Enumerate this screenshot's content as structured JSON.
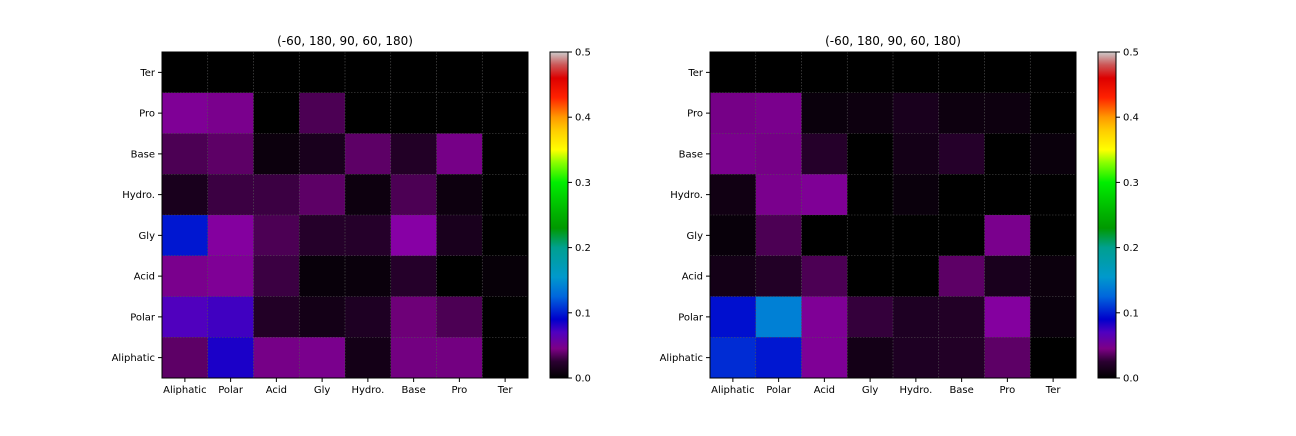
{
  "chart_data": [
    {
      "type": "heatmap",
      "title": "(-60, 180, 90, 60, 180)",
      "x_categories": [
        "Aliphatic",
        "Polar",
        "Acid",
        "Gly",
        "Hydro.",
        "Base",
        "Pro",
        "Ter"
      ],
      "y_categories": [
        "Ter",
        "Pro",
        "Base",
        "Hydro.",
        "Gly",
        "Acid",
        "Polar",
        "Aliphatic"
      ],
      "values": [
        [
          0.0,
          0.0,
          0.0,
          0.0,
          0.0,
          0.0,
          0.0,
          0.0
        ],
        [
          0.055,
          0.052,
          0.0,
          0.035,
          0.0,
          0.0,
          0.0,
          0.0
        ],
        [
          0.035,
          0.04,
          0.007,
          0.015,
          0.04,
          0.02,
          0.05,
          0.0
        ],
        [
          0.015,
          0.03,
          0.03,
          0.04,
          0.008,
          0.035,
          0.008,
          0.0
        ],
        [
          0.098,
          0.058,
          0.035,
          0.022,
          0.022,
          0.06,
          0.015,
          0.0
        ],
        [
          0.052,
          0.055,
          0.03,
          0.005,
          0.006,
          0.022,
          0.0,
          0.004
        ],
        [
          0.075,
          0.078,
          0.02,
          0.012,
          0.018,
          0.045,
          0.035,
          0.0
        ],
        [
          0.04,
          0.085,
          0.05,
          0.052,
          0.012,
          0.048,
          0.048,
          0.0
        ]
      ],
      "colorbar": {
        "min": 0.0,
        "max": 0.5,
        "ticks": [
          "0.0",
          "0.1",
          "0.2",
          "0.3",
          "0.4",
          "0.5"
        ]
      },
      "grid": true
    },
    {
      "type": "heatmap",
      "title": "(-60, 180, 90, 60, 180)",
      "x_categories": [
        "Aliphatic",
        "Polar",
        "Acid",
        "Gly",
        "Hydro.",
        "Base",
        "Pro",
        "Ter"
      ],
      "y_categories": [
        "Ter",
        "Pro",
        "Base",
        "Hydro.",
        "Gly",
        "Acid",
        "Polar",
        "Aliphatic"
      ],
      "values": [
        [
          0.0,
          0.0,
          0.0,
          0.0,
          0.0,
          0.0,
          0.0,
          0.0
        ],
        [
          0.05,
          0.052,
          0.006,
          0.008,
          0.015,
          0.008,
          0.008,
          0.0
        ],
        [
          0.052,
          0.05,
          0.022,
          0.0,
          0.012,
          0.022,
          0.0,
          0.006
        ],
        [
          0.01,
          0.052,
          0.055,
          0.0,
          0.006,
          0.0,
          0.0,
          0.0
        ],
        [
          0.005,
          0.035,
          0.0,
          0.0,
          0.0,
          0.0,
          0.052,
          0.0
        ],
        [
          0.012,
          0.02,
          0.035,
          0.0,
          0.0,
          0.04,
          0.015,
          0.007
        ],
        [
          0.095,
          0.14,
          0.055,
          0.028,
          0.018,
          0.02,
          0.058,
          0.006
        ],
        [
          0.105,
          0.098,
          0.055,
          0.012,
          0.018,
          0.02,
          0.04,
          0.0
        ]
      ],
      "colorbar": {
        "min": 0.0,
        "max": 0.5,
        "ticks": [
          "0.0",
          "0.1",
          "0.2",
          "0.3",
          "0.4",
          "0.5"
        ]
      },
      "grid": true
    }
  ]
}
